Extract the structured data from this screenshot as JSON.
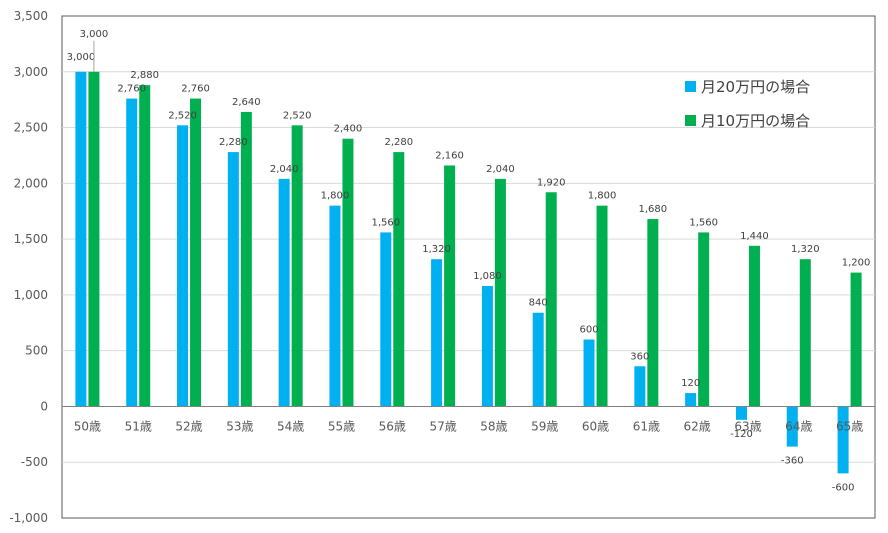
{
  "chart_data": {
    "type": "bar",
    "title": "",
    "xlabel": "",
    "ylabel": "",
    "categories": [
      "50歳",
      "51歳",
      "52歳",
      "53歳",
      "54歳",
      "55歳",
      "56歳",
      "57歳",
      "58歳",
      "59歳",
      "60歳",
      "61歳",
      "62歳",
      "63歳",
      "64歳",
      "65歳"
    ],
    "series": [
      {
        "name": "月20万円の場合",
        "color": "#00B0F0",
        "values": [
          3000,
          2760,
          2520,
          2280,
          2040,
          1800,
          1560,
          1320,
          1080,
          840,
          600,
          360,
          120,
          -120,
          -360,
          -600
        ],
        "labels": [
          "3,000",
          "2,760",
          "2,520",
          "2,280",
          "2,040",
          "1,800",
          "1,560",
          "1,320",
          "1,080",
          "840",
          "600",
          "360",
          "120",
          "-120",
          "-360",
          "-600"
        ]
      },
      {
        "name": "月10万円の場合",
        "color": "#00B050",
        "values": [
          3000,
          2880,
          2760,
          2640,
          2520,
          2400,
          2280,
          2160,
          2040,
          1920,
          1800,
          1680,
          1560,
          1440,
          1320,
          1200
        ],
        "labels": [
          "3,000",
          "2,880",
          "2,760",
          "2,640",
          "2,520",
          "2,400",
          "2,280",
          "2,160",
          "2,040",
          "1,920",
          "1,800",
          "1,680",
          "1,560",
          "1,440",
          "1,320",
          "1,200"
        ]
      }
    ],
    "ylim": [
      -1000,
      3500
    ],
    "ytick_values": [
      3500,
      3000,
      2500,
      2000,
      1500,
      1000,
      500,
      0,
      -500,
      -1000
    ],
    "ytick_labels": [
      "3,500",
      "3,000",
      "2,500",
      "2,000",
      "1,500",
      "1,000",
      "500",
      "0",
      "-500",
      "-1,000"
    ],
    "grid": true,
    "legend": "top-right"
  }
}
